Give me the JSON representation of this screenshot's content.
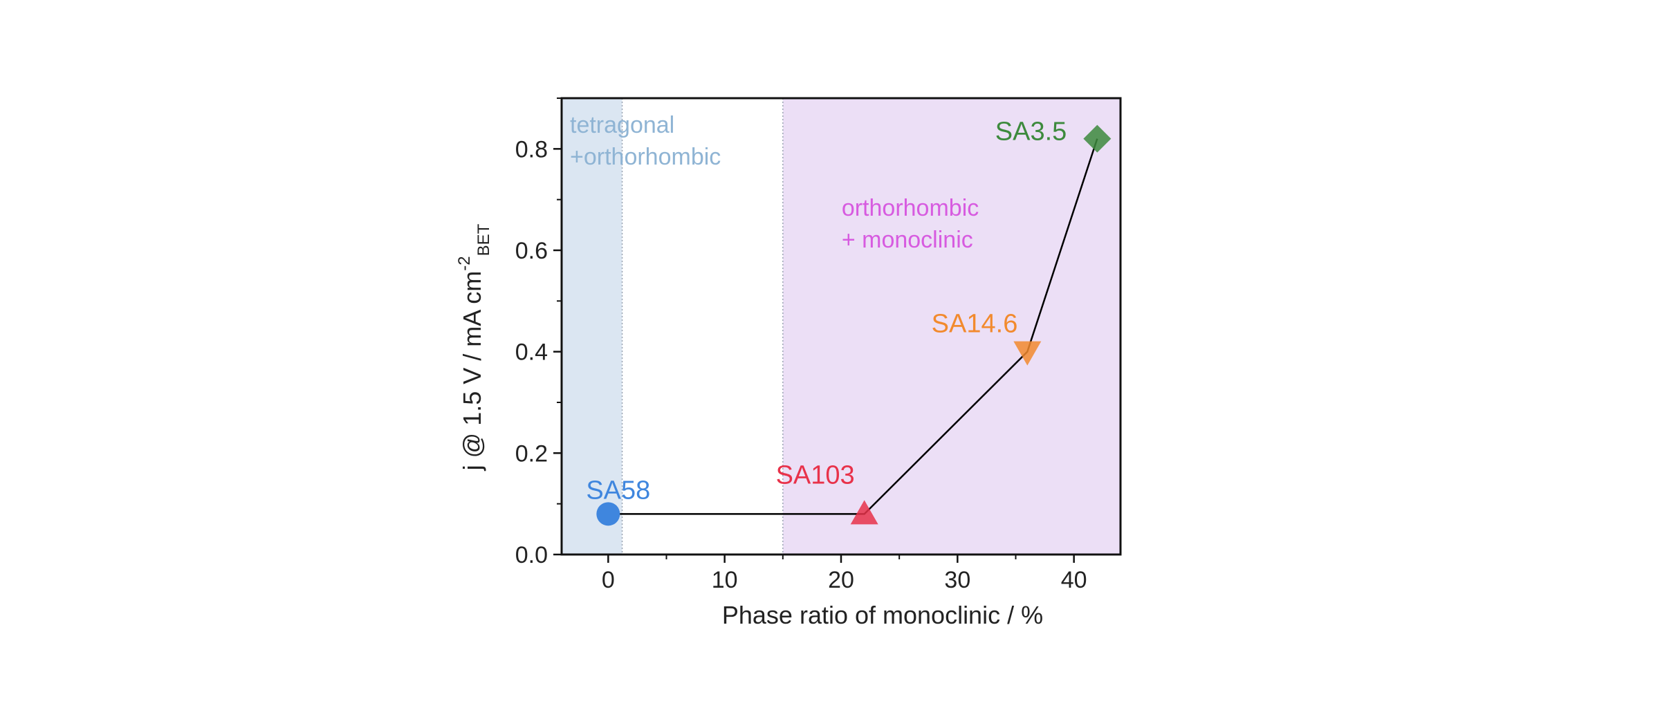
{
  "chart_data": {
    "type": "scatter",
    "title": "",
    "xlabel": "Phase ratio of monoclinic / %",
    "ylabel": {
      "main": "j @ 1.5 V /  mA cm",
      "superscript": "-2",
      "subscript": "BET"
    },
    "xlim": [
      -4,
      44
    ],
    "ylim": [
      0,
      0.9
    ],
    "xticks": [
      0,
      10,
      20,
      30,
      40
    ],
    "yticks": [
      0.0,
      0.2,
      0.4,
      0.6,
      0.8
    ],
    "xtick_labels": [
      "0",
      "10",
      "20",
      "30",
      "40"
    ],
    "ytick_labels": [
      "0.0",
      "0.2",
      "0.4",
      "0.6",
      "0.8"
    ],
    "grid": false,
    "line_color": "#000000",
    "regions": [
      {
        "label_lines": [
          "tetragonal",
          "+orthorhombic"
        ],
        "x_from": -4,
        "x_to": 1.2,
        "fill": "#dbe6f2",
        "text_color": "#8fb4d4"
      },
      {
        "label_lines": [
          "orthorhombic",
          "+ monoclinic"
        ],
        "x_from": 15,
        "x_to": 44,
        "fill": "#ecdff6",
        "text_color": "#d75be0"
      }
    ],
    "points": [
      {
        "label": "SA58",
        "x": 0,
        "y": 0.08,
        "marker": "circle",
        "color": "#3f86de"
      },
      {
        "label": "SA103",
        "x": 22,
        "y": 0.08,
        "marker": "triangle-up",
        "color": "#e8324a"
      },
      {
        "label": "SA14.6",
        "x": 36,
        "y": 0.4,
        "marker": "triangle-down",
        "color": "#f28a2e"
      },
      {
        "label": "SA3.5",
        "x": 42,
        "y": 0.82,
        "marker": "diamond",
        "color": "#3d8a3d"
      }
    ]
  }
}
